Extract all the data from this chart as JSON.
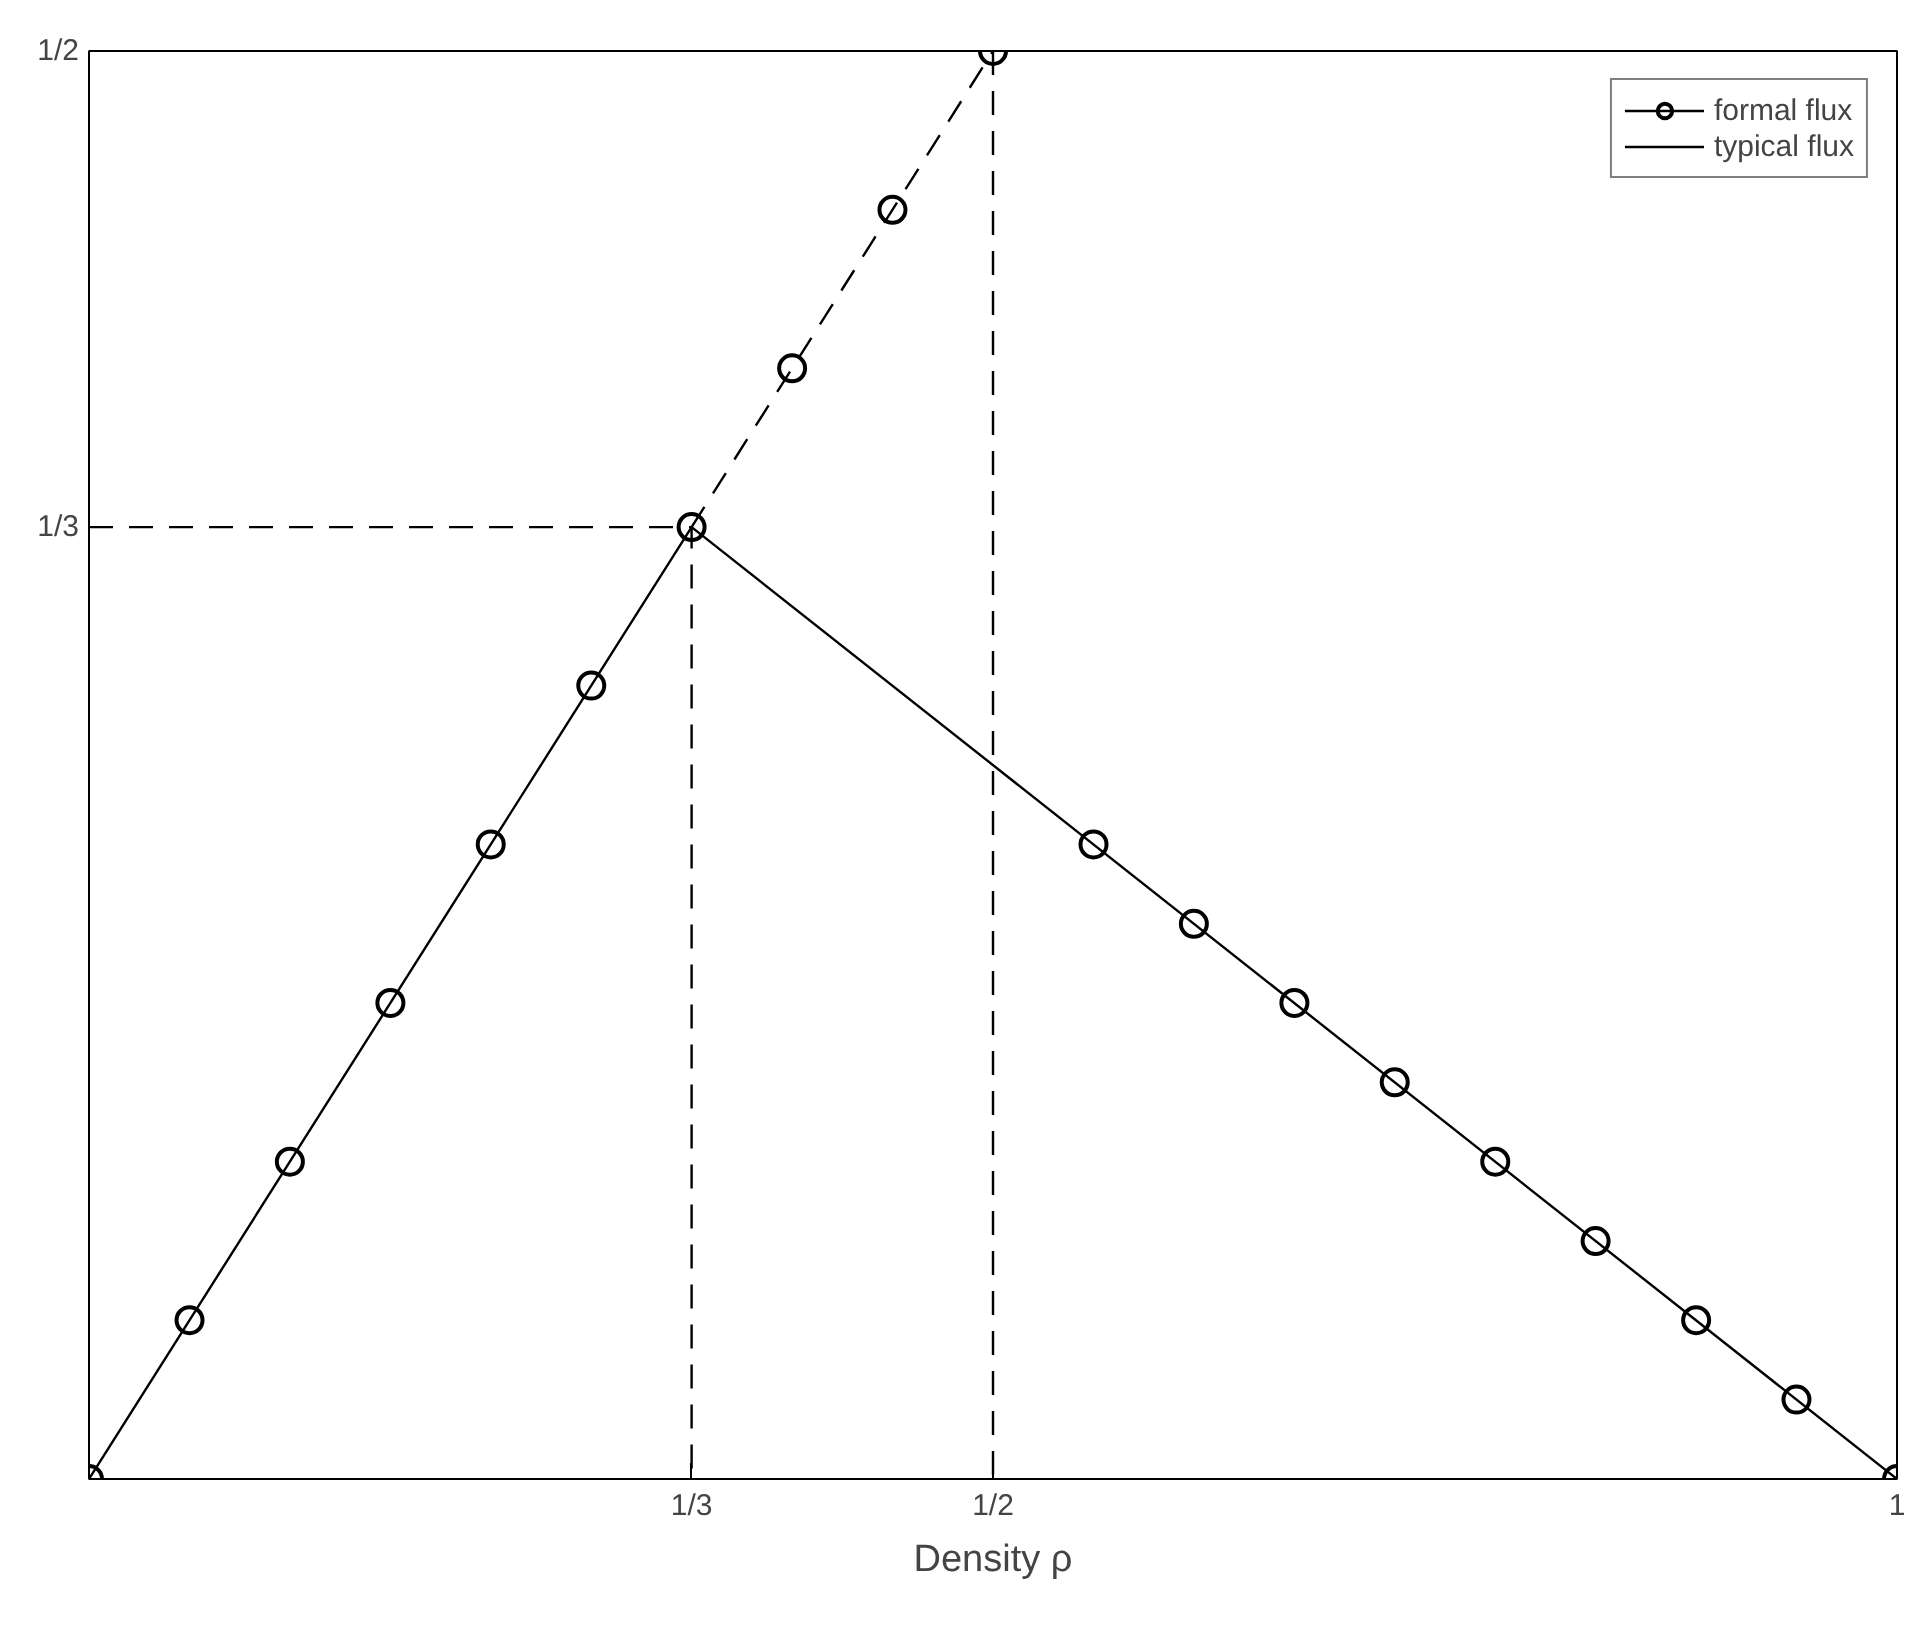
{
  "chart_data": {
    "type": "line",
    "xlabel": "Density ρ",
    "xlim": [
      0,
      1
    ],
    "ylim": [
      0,
      0.5
    ],
    "xticks": [
      {
        "value": 0.3333,
        "label": "1/3"
      },
      {
        "value": 0.5,
        "label": "1/2"
      },
      1
    ],
    "yticks": [
      {
        "value": 0.3333,
        "label": "1/3"
      },
      {
        "value": 0.5,
        "label": "1/2"
      }
    ],
    "grid": false,
    "legend": "top right",
    "series": [
      {
        "name": "formal flux",
        "type": "scatter",
        "marker": "circle",
        "color": "#000000",
        "x": [
          0,
          0.0556,
          0.1111,
          0.1667,
          0.2222,
          0.2778,
          0.3333,
          0.3889,
          0.4444,
          0.5,
          0.5556,
          0.6111,
          0.6667,
          0.7222,
          0.7778,
          0.8333,
          0.8889,
          0.9444,
          1
        ],
        "values": [
          0,
          0.0556,
          0.1111,
          0.1667,
          0.2222,
          0.2778,
          0.3333,
          0.3889,
          0.4444,
          0.5,
          0.2222,
          0.1944,
          0.1667,
          0.1389,
          0.1111,
          0.0833,
          0.0556,
          0.0278,
          0
        ]
      },
      {
        "name": "typical flux",
        "line_style": "solid",
        "color": "#000000",
        "x": [
          0,
          0.3333,
          1
        ],
        "values": [
          0,
          0.3333,
          0
        ]
      },
      {
        "line_style": "dashed",
        "color": "#000000",
        "x": [
          0.3333,
          0.5
        ],
        "values": [
          0.3333,
          0.5
        ]
      },
      {
        "line_style": "dashed",
        "color": "#000000",
        "x": [
          0,
          0.3333,
          0.3333
        ],
        "values": [
          0.3333,
          0.3333,
          0
        ]
      }
    ],
    "ref_lines": [
      {
        "axis": "x",
        "value": 0.5,
        "line_style": "dashed",
        "color": "#000000"
      }
    ]
  }
}
